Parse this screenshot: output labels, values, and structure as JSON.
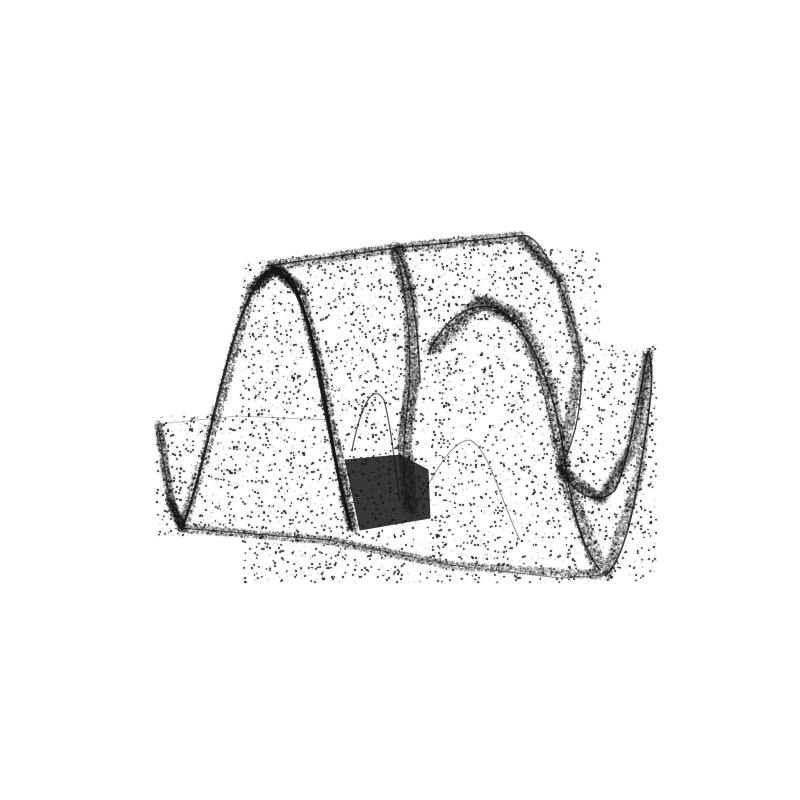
{
  "image": {
    "subject": "strange-attractor-point-cloud",
    "background_color": "#ffffff",
    "ink_color": "#141414"
  }
}
